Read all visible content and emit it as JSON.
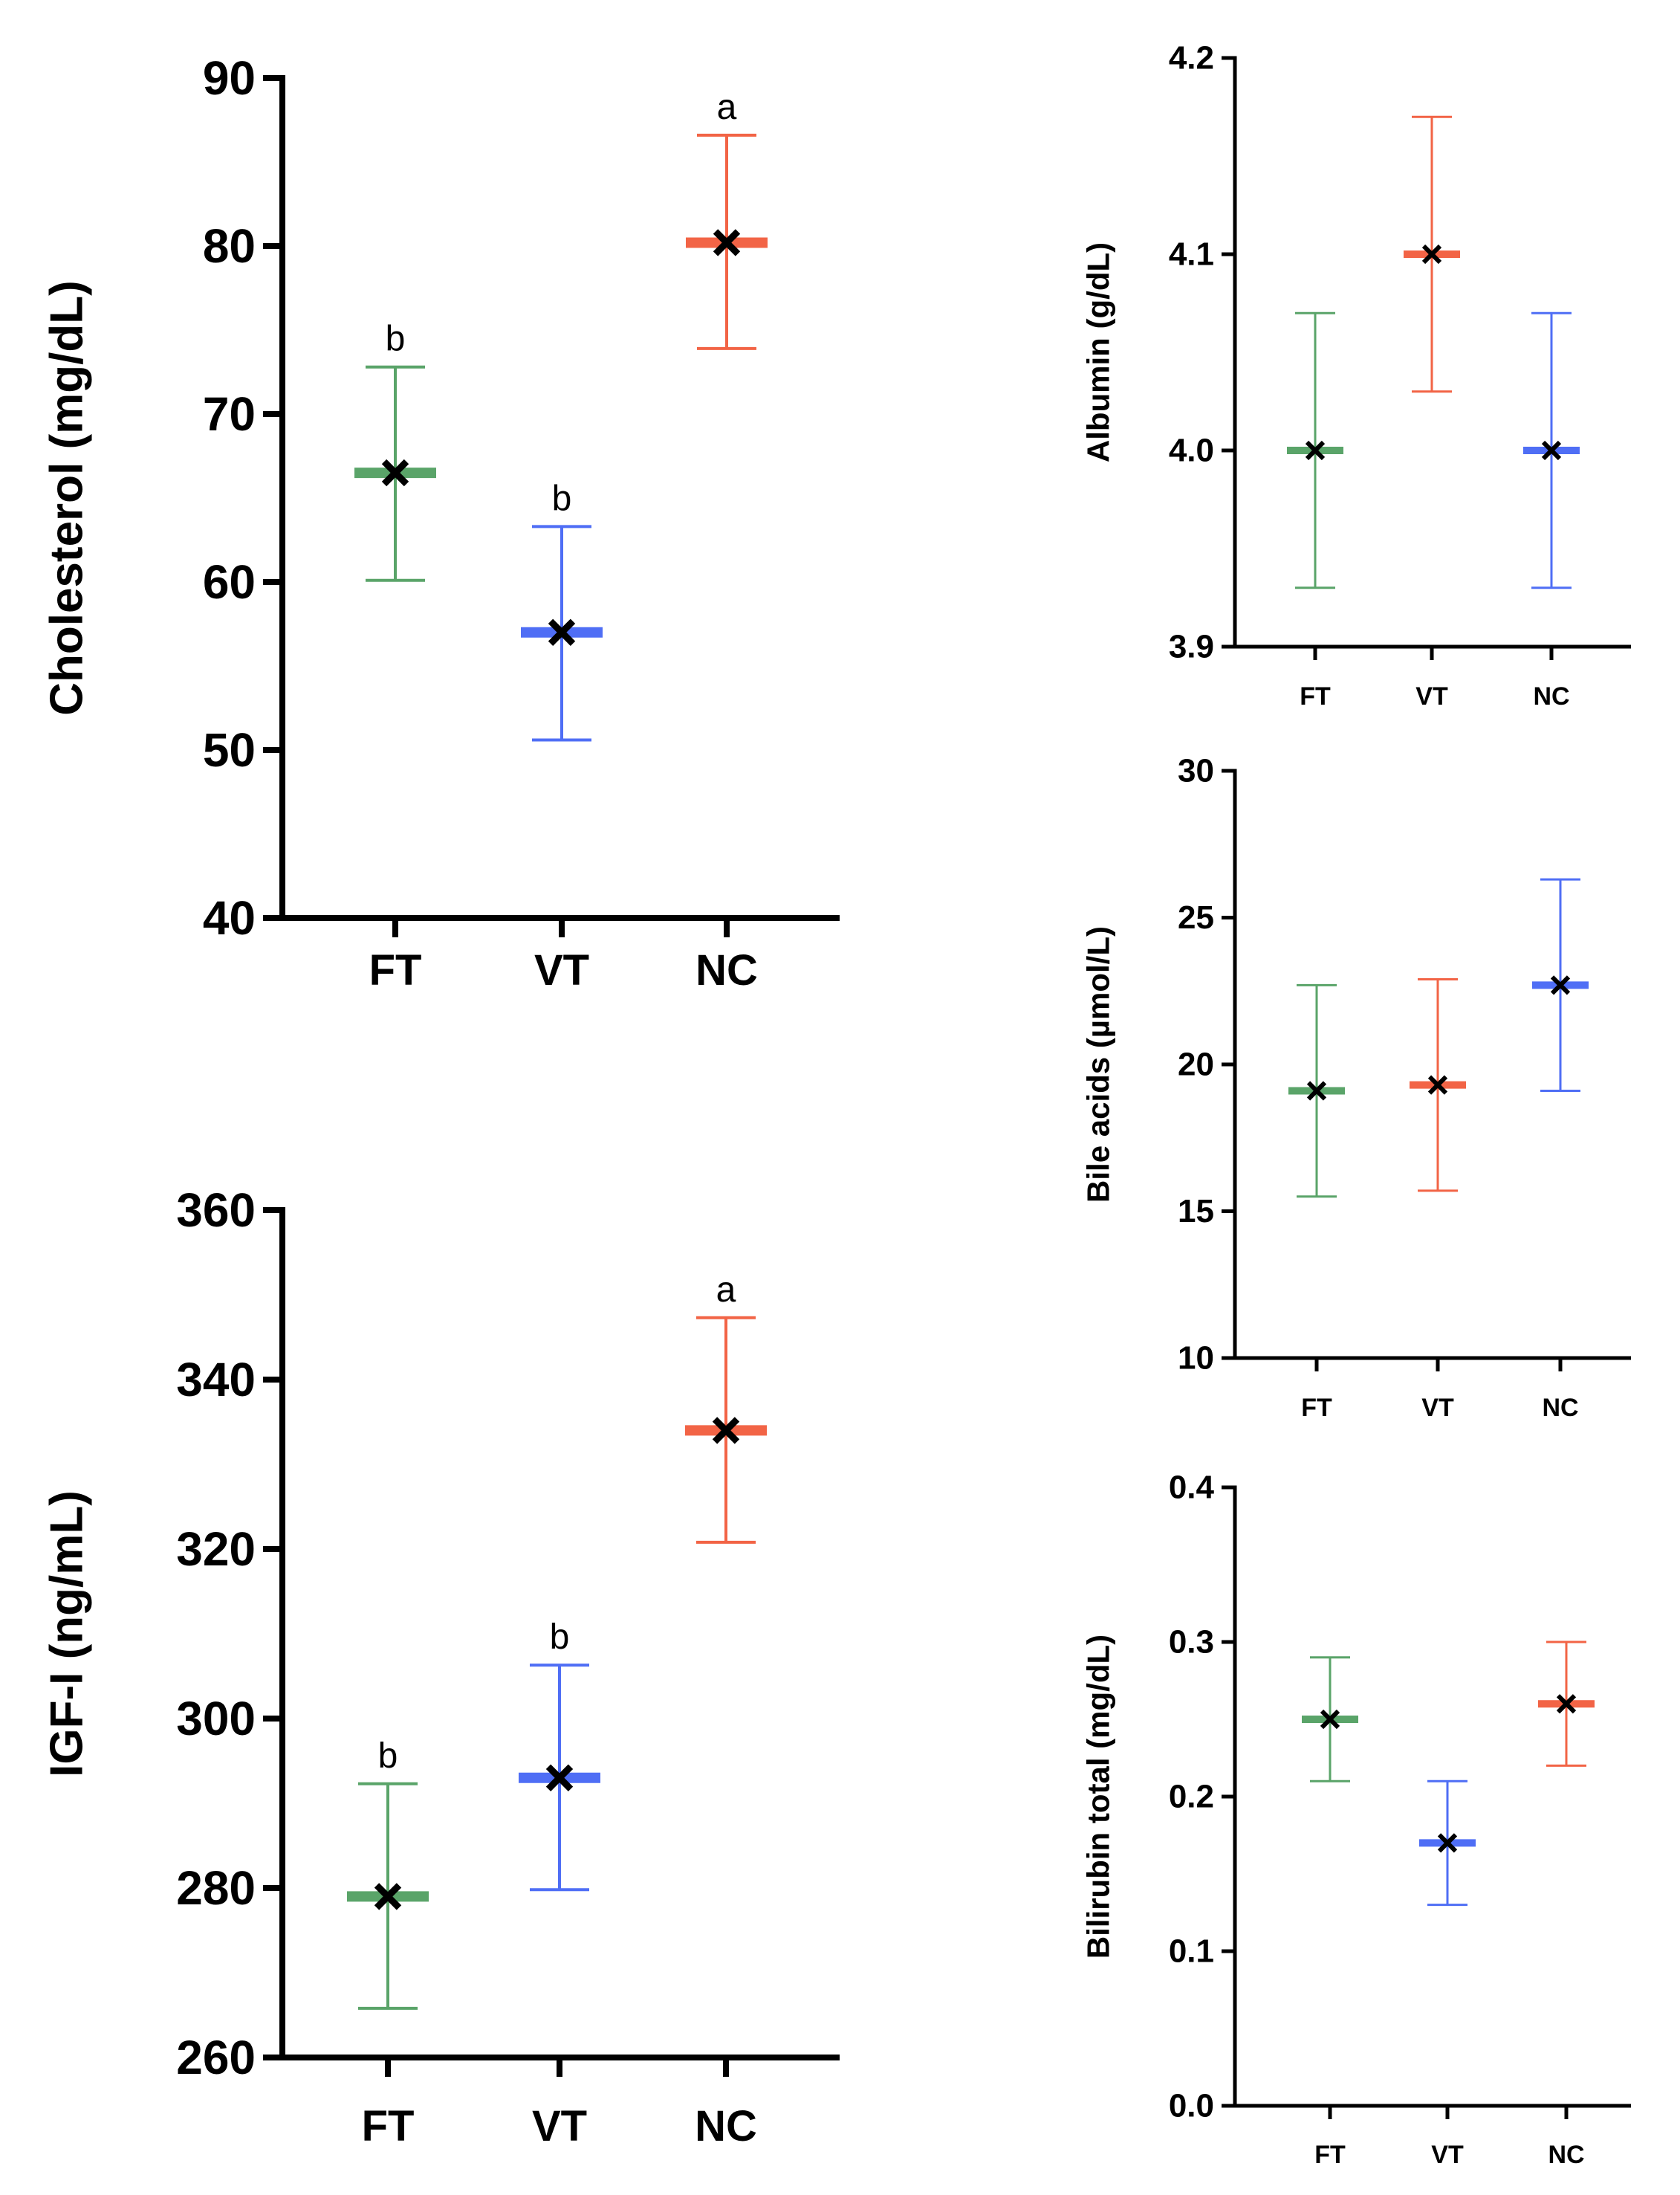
{
  "colors": {
    "FT": "#5aa469",
    "VT": "#4f6ef5",
    "NC": "#f26446",
    "axis": "#000000",
    "mean_marker": "#000000"
  },
  "chart_data": [
    {
      "type": "scatter",
      "ylabel": "Cholesterol (mg/dL)",
      "categories": [
        "FT",
        "VT",
        "NC"
      ],
      "ylim": [
        40,
        90
      ],
      "yticks": [
        40,
        50,
        60,
        70,
        80,
        90
      ],
      "series": [
        {
          "category": "FT",
          "mean": 66.5,
          "lower": 60.1,
          "upper": 72.8,
          "sig": "b"
        },
        {
          "category": "VT",
          "mean": 57.0,
          "lower": 50.6,
          "upper": 63.3,
          "sig": "b"
        },
        {
          "category": "NC",
          "mean": 80.2,
          "lower": 73.9,
          "upper": 86.6,
          "sig": "a"
        }
      ]
    },
    {
      "type": "scatter",
      "ylabel": "IGF-I (ng/mL)",
      "categories": [
        "FT",
        "VT",
        "NC"
      ],
      "ylim": [
        260,
        360
      ],
      "yticks": [
        260,
        280,
        300,
        320,
        340,
        360
      ],
      "series": [
        {
          "category": "FT",
          "mean": 279,
          "lower": 265.8,
          "upper": 292.3,
          "sig": "b"
        },
        {
          "category": "VT",
          "mean": 293,
          "lower": 279.8,
          "upper": 306.3,
          "sig": "b"
        },
        {
          "category": "NC",
          "mean": 334,
          "lower": 320.8,
          "upper": 347.3,
          "sig": "a"
        }
      ]
    },
    {
      "type": "scatter",
      "ylabel": "Albumin (g/dL)",
      "categories": [
        "FT",
        "VT",
        "NC"
      ],
      "ylim": [
        3.9,
        4.2
      ],
      "yticks": [
        "3.9",
        "4.0",
        "4.1",
        "4.2"
      ],
      "series": [
        {
          "category": "FT",
          "mean": 4.0,
          "lower": 3.93,
          "upper": 4.07,
          "color_key": "FT"
        },
        {
          "category": "VT",
          "mean": 4.1,
          "lower": 4.03,
          "upper": 4.17,
          "color_key": "NC"
        },
        {
          "category": "NC",
          "mean": 4.0,
          "lower": 3.93,
          "upper": 4.07,
          "color_key": "VT"
        }
      ]
    },
    {
      "type": "scatter",
      "ylabel": "Bile acids (µmol/L)",
      "categories": [
        "FT",
        "VT",
        "NC"
      ],
      "ylim": [
        10,
        30
      ],
      "yticks": [
        10,
        15,
        20,
        25,
        30
      ],
      "series": [
        {
          "category": "FT",
          "mean": 19.1,
          "lower": 15.5,
          "upper": 22.7,
          "color_key": "FT"
        },
        {
          "category": "VT",
          "mean": 19.3,
          "lower": 15.7,
          "upper": 22.9,
          "color_key": "NC"
        },
        {
          "category": "NC",
          "mean": 22.7,
          "lower": 19.1,
          "upper": 26.3,
          "color_key": "VT"
        }
      ]
    },
    {
      "type": "scatter",
      "ylabel": "Bilirubin total (mg/dL)",
      "categories": [
        "FT",
        "VT",
        "NC"
      ],
      "ylim": [
        0.0,
        0.4
      ],
      "yticks": [
        "0.0",
        "0.1",
        "0.2",
        "0.3",
        "0.4"
      ],
      "series": [
        {
          "category": "FT",
          "mean": 0.25,
          "lower": 0.21,
          "upper": 0.29,
          "color_key": "FT"
        },
        {
          "category": "VT",
          "mean": 0.17,
          "lower": 0.13,
          "upper": 0.21,
          "color_key": "VT"
        },
        {
          "category": "NC",
          "mean": 0.26,
          "lower": 0.22,
          "upper": 0.3,
          "color_key": "NC"
        }
      ]
    }
  ]
}
